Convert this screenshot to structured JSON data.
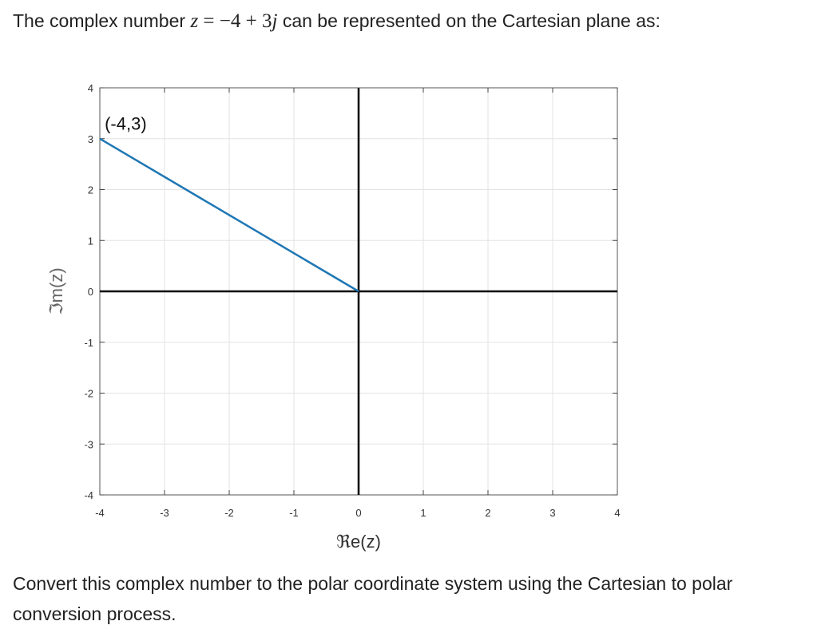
{
  "intro": {
    "before": "The complex number",
    "math_var": "z",
    "math_eq": " = ",
    "math_value": "−4 + 3",
    "math_j": "j",
    "after": "can be represented on the Cartesian plane as:"
  },
  "outro": "Convert this complex number to the polar coordinate system using the Cartesian to polar conversion process.",
  "chart_data": {
    "type": "line",
    "xlabel": "ℜe(z)",
    "ylabel": "ℑm(z)",
    "xlim": [
      -4,
      4
    ],
    "ylim": [
      -4,
      4
    ],
    "xticks": [
      -4,
      -3,
      -2,
      -1,
      0,
      1,
      2,
      3,
      4
    ],
    "yticks": [
      -4,
      -3,
      -2,
      -1,
      0,
      1,
      2,
      3,
      4
    ],
    "grid": true,
    "axes_lines": {
      "x": 0,
      "y": 0,
      "color": "#000000"
    },
    "series": [
      {
        "points": [
          [
            -4,
            3
          ],
          [
            0,
            0
          ]
        ],
        "color": "#1f77b4"
      }
    ],
    "annotations": [
      {
        "text": "(-4,3)",
        "x": -3.6,
        "y": 3.3
      }
    ]
  }
}
